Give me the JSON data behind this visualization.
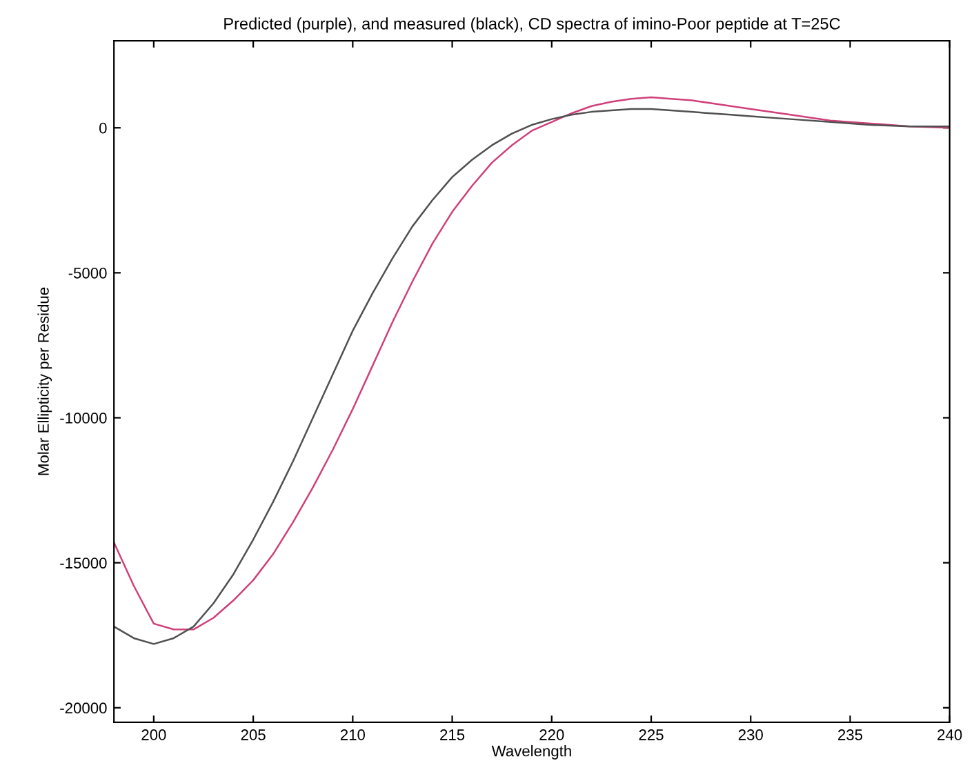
{
  "chart_data": {
    "type": "line",
    "title": "Predicted (purple), and measured (black), CD spectra of imino-Poor peptide at T=25C",
    "xlabel": "Wavelength",
    "ylabel": "Molar Ellipticity per Residue",
    "xlim": [
      198,
      240
    ],
    "ylim": [
      -20500,
      3000
    ],
    "xticks": [
      200,
      205,
      210,
      215,
      220,
      225,
      230,
      235,
      240
    ],
    "yticks": [
      -20000,
      -15000,
      -10000,
      -5000,
      0
    ],
    "grid": false,
    "legend": false,
    "series": [
      {
        "color": "#d0407a",
        "x": [
          198,
          199,
          200,
          201,
          202,
          203,
          204,
          205,
          206,
          207,
          208,
          209,
          210,
          211,
          212,
          213,
          214,
          215,
          216,
          217,
          218,
          219,
          220,
          221,
          222,
          223,
          224,
          225,
          226,
          227,
          228,
          229,
          230,
          232,
          234,
          236,
          238,
          240
        ],
        "values": [
          -14300,
          -15800,
          -17100,
          -17300,
          -17300,
          -16900,
          -16300,
          -15600,
          -14700,
          -13600,
          -12400,
          -11100,
          -9700,
          -8200,
          -6700,
          -5300,
          -4000,
          -2900,
          -2000,
          -1200,
          -600,
          -100,
          200,
          500,
          750,
          900,
          1000,
          1050,
          1000,
          950,
          850,
          750,
          650,
          450,
          250,
          150,
          50,
          0
        ]
      },
      {
        "color": "#505050",
        "x": [
          198,
          199,
          200,
          201,
          202,
          203,
          204,
          205,
          206,
          207,
          208,
          209,
          210,
          211,
          212,
          213,
          214,
          215,
          216,
          217,
          218,
          219,
          220,
          221,
          222,
          223,
          224,
          225,
          226,
          227,
          228,
          229,
          230,
          232,
          234,
          236,
          238,
          240
        ],
        "values": [
          -17200,
          -17600,
          -17800,
          -17600,
          -17200,
          -16400,
          -15400,
          -14200,
          -12900,
          -11500,
          -10000,
          -8500,
          -7000,
          -5700,
          -4500,
          -3400,
          -2500,
          -1700,
          -1100,
          -600,
          -200,
          100,
          300,
          450,
          550,
          600,
          650,
          650,
          600,
          550,
          500,
          450,
          400,
          300,
          200,
          100,
          50,
          50
        ]
      }
    ]
  }
}
